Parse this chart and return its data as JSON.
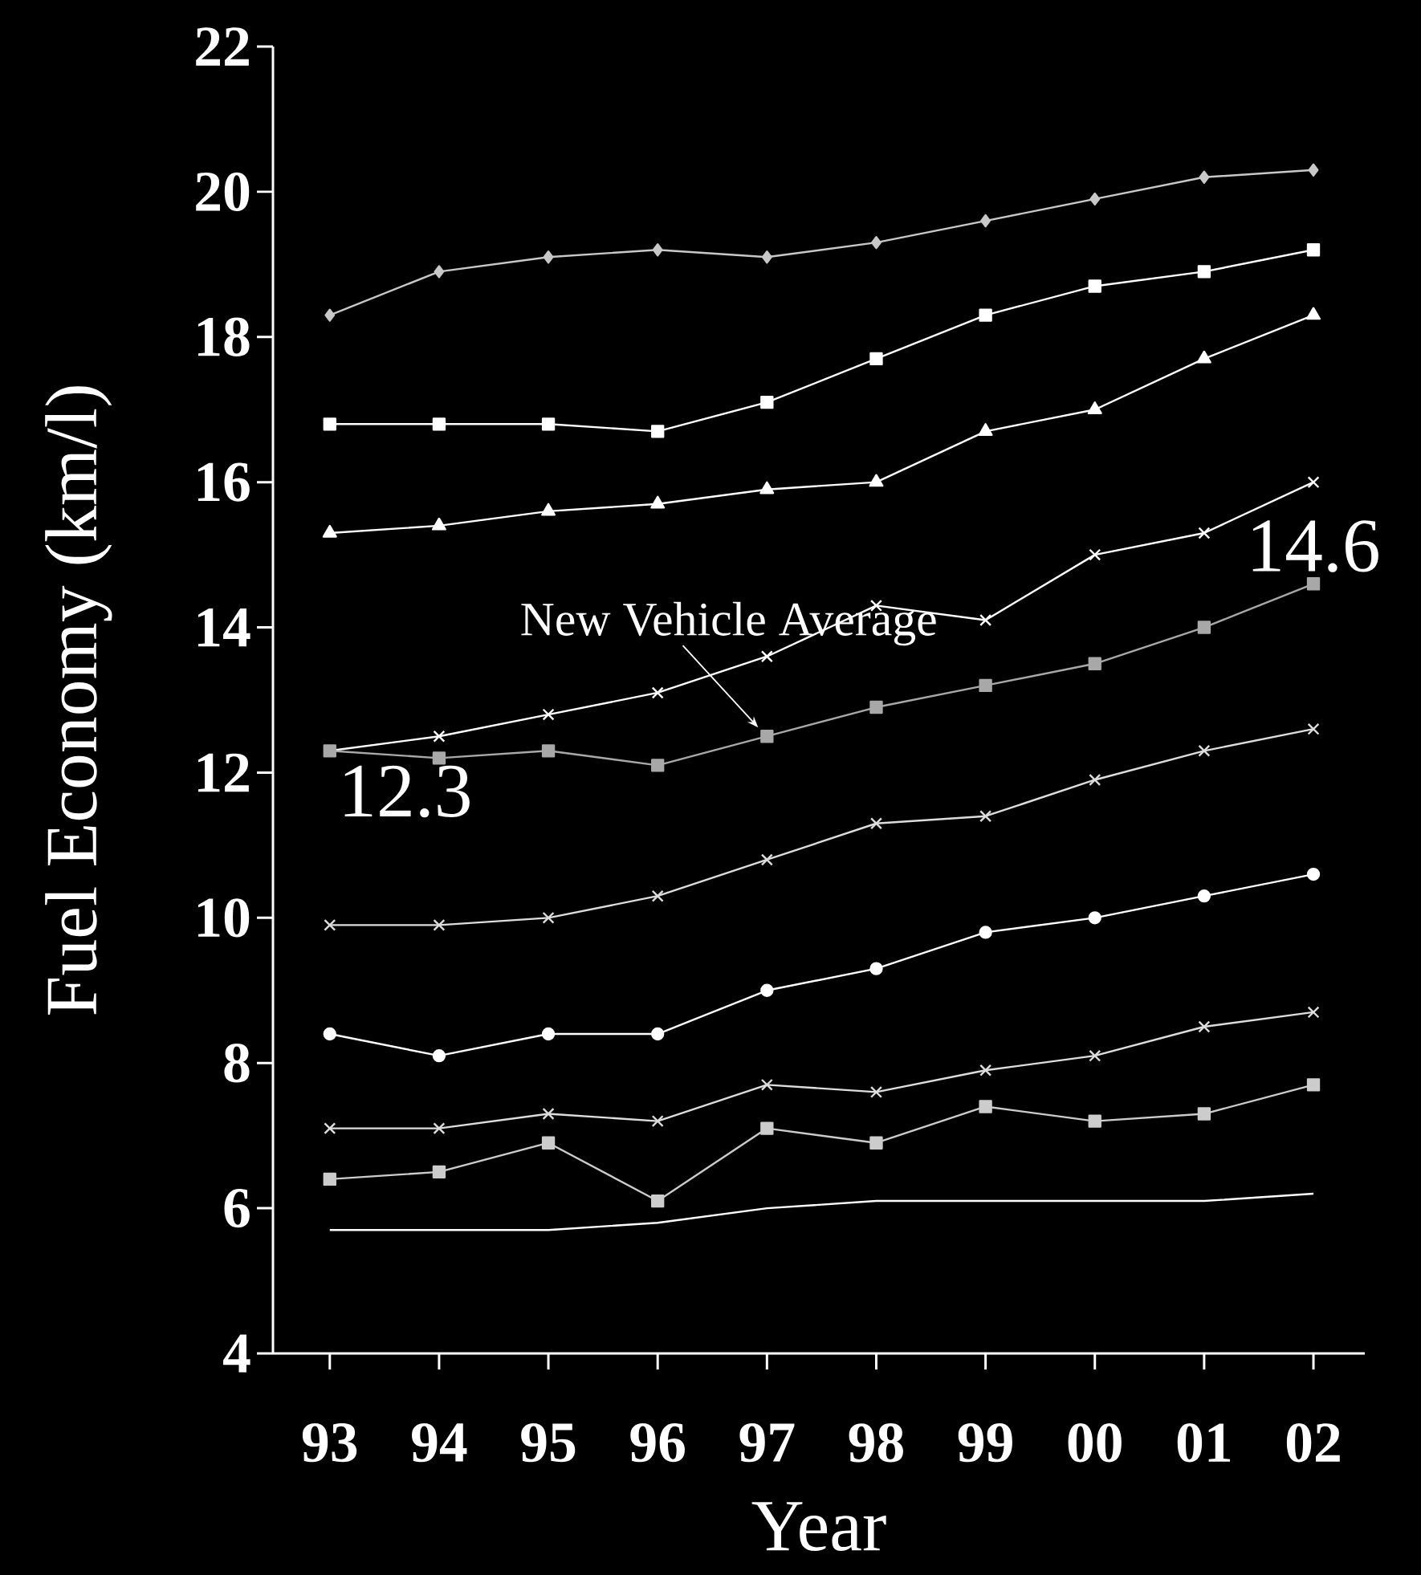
{
  "chart_data": {
    "type": "line",
    "xlabel": "Year",
    "ylabel": "Fuel Economy (km/l)",
    "categories": [
      "93",
      "94",
      "95",
      "96",
      "97",
      "98",
      "99",
      "00",
      "01",
      "02"
    ],
    "ylim": [
      4,
      22
    ],
    "yticks": [
      4,
      6,
      8,
      10,
      12,
      14,
      16,
      18,
      20,
      22
    ],
    "grid": false,
    "series": [
      {
        "color": "#c8c8c8",
        "marker": "diamond",
        "values": [
          18.3,
          18.9,
          19.1,
          19.2,
          19.1,
          19.3,
          19.6,
          19.9,
          20.2,
          20.3
        ]
      },
      {
        "color": "#ffffff",
        "marker": "square",
        "values": [
          16.8,
          16.8,
          16.8,
          16.7,
          17.1,
          17.7,
          18.3,
          18.7,
          18.9,
          19.2
        ]
      },
      {
        "color": "#ffffff",
        "marker": "triangle",
        "values": [
          15.3,
          15.4,
          15.6,
          15.7,
          15.9,
          16.0,
          16.7,
          17.0,
          17.7,
          18.3
        ]
      },
      {
        "color": "#ffffff",
        "marker": "cross",
        "values": [
          12.3,
          12.5,
          12.8,
          13.1,
          13.6,
          14.3,
          14.1,
          15.0,
          15.3,
          16.0
        ]
      },
      {
        "color": "#a8a8a8",
        "marker": "square",
        "values": [
          12.3,
          12.2,
          12.3,
          12.1,
          12.5,
          12.9,
          13.2,
          13.5,
          14.0,
          14.6
        ],
        "value_labels": [
          "12.3",
          null,
          null,
          null,
          null,
          null,
          null,
          null,
          null,
          "14.6"
        ]
      },
      {
        "color": "#dddddd",
        "marker": "cross",
        "values": [
          9.9,
          9.9,
          10.0,
          10.3,
          10.8,
          11.3,
          11.4,
          11.9,
          12.3,
          12.6
        ]
      },
      {
        "color": "#ffffff",
        "marker": "circle",
        "values": [
          8.4,
          8.1,
          8.4,
          8.4,
          9.0,
          9.3,
          9.8,
          10.0,
          10.3,
          10.6
        ]
      },
      {
        "color": "#dddddd",
        "marker": "cross",
        "values": [
          7.1,
          7.1,
          7.3,
          7.2,
          7.7,
          7.6,
          7.9,
          8.1,
          8.5,
          8.7
        ]
      },
      {
        "color": "#cccccc",
        "marker": "square",
        "values": [
          6.4,
          6.5,
          6.9,
          6.1,
          7.1,
          6.9,
          7.4,
          7.2,
          7.3,
          7.7
        ]
      },
      {
        "color": "#ffffff",
        "marker": "none",
        "values": [
          5.7,
          5.7,
          5.7,
          5.8,
          6.0,
          6.1,
          6.1,
          6.1,
          6.1,
          6.2
        ]
      }
    ],
    "annotations": [
      {
        "text": "New Vehicle Average",
        "x": "97",
        "y": 12.5
      }
    ]
  }
}
